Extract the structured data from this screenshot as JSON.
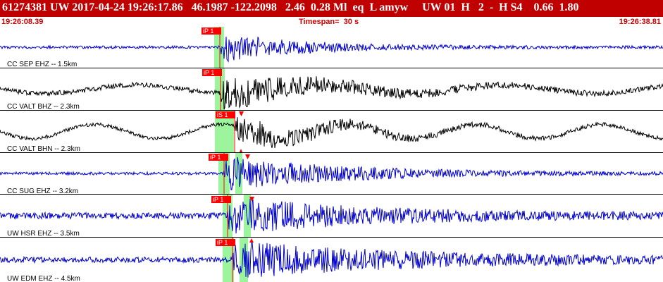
{
  "header": {
    "title": "61274381 UW 2017-04-24 19:26:17.86   46.1987 -122.2098   2.46  0.28 Ml  eq  L amyw     UW 01  H   2  -  H S4    0.66  1.80"
  },
  "subheader": {
    "start_time": "19:26:08.39",
    "timespan": "Timespan=  30 s",
    "end_time": "19:26:38.81"
  },
  "colors": {
    "header_bg": "#c00000",
    "trace_blue": "#0000cc",
    "trace_black": "#000000",
    "pick_red": "#ff0000",
    "window_green": "#9cf59c",
    "separator": "#000000"
  },
  "traces": [
    {
      "label": "CC SEP EHZ -- 1.5km",
      "color": "blue",
      "pick_label": "iP 1",
      "onset_s": 10.9
    },
    {
      "label": "CC VALT BHZ -- 2.3km",
      "color": "black",
      "pick_label": "iP 1",
      "onset_s": 11.0
    },
    {
      "label": "CC VALT BHN -- 2.3km",
      "color": "black",
      "pick_label": "iS 1",
      "onset_s": 11.3
    },
    {
      "label": "CC SUG EHZ -- 3.2km",
      "color": "blue",
      "pick_label": "iP 1",
      "onset_s": 11.4
    },
    {
      "label": "UW HSR EHZ -- 3.5km",
      "color": "blue",
      "pick_label": "iP 1",
      "onset_s": 11.5
    },
    {
      "label": "UW EDM EHZ -- 4.5km",
      "color": "blue",
      "pick_label": "iP 1",
      "onset_s": 11.6
    }
  ]
}
